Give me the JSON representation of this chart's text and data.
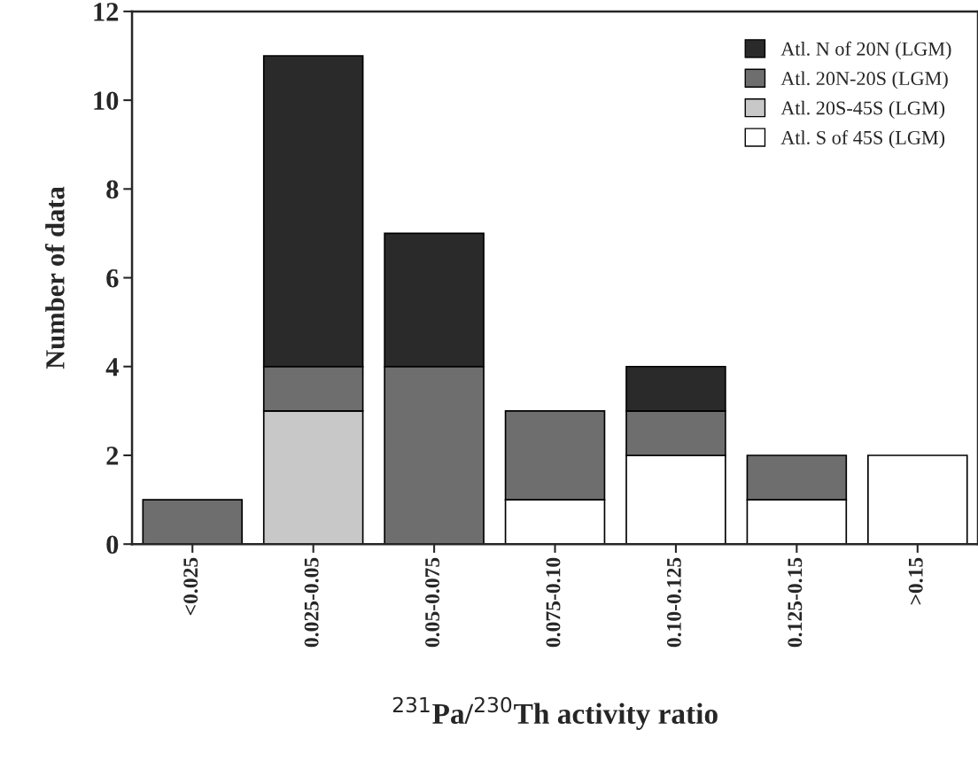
{
  "chart_data": {
    "type": "bar",
    "stacked": true,
    "xlabel": "$^{231}$Pa/$^{230}$Th activity ratio",
    "ylabel": "Number of data",
    "categories": [
      "<0.025",
      "0.025-0.05",
      "0.05-0.075",
      "0.075-0.10",
      "0.10-0.125",
      "0.125-0.15",
      ">0.15"
    ],
    "series": [
      {
        "name": "Atl. S of 45S (LGM)",
        "color": "#ffffff",
        "values": [
          0,
          0,
          0,
          1,
          2,
          1,
          2
        ]
      },
      {
        "name": "Atl. 20S-45S (LGM)",
        "color": "#c8c8c8",
        "values": [
          0,
          3,
          0,
          0,
          0,
          0,
          0
        ]
      },
      {
        "name": "Atl. 20N-20S (LGM)",
        "color": "#6e6e6e",
        "values": [
          1,
          1,
          4,
          2,
          1,
          1,
          0
        ]
      },
      {
        "name": "Atl. N of 20N (LGM)",
        "color": "#2a2a2a",
        "values": [
          0,
          7,
          3,
          0,
          1,
          0,
          0
        ]
      }
    ],
    "ylim": [
      0,
      12
    ],
    "yticks": [
      0,
      2,
      4,
      6,
      8,
      10,
      12
    ],
    "grid": false,
    "legend": "top right"
  }
}
